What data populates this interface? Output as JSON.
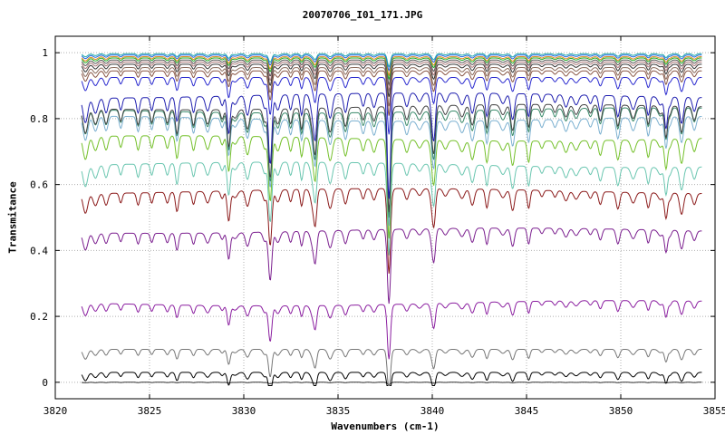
{
  "chart_data": {
    "type": "line",
    "title": "20070706_I01_171.JPG",
    "xlabel": "Wavenumbers (cm-1)",
    "ylabel": "Transmitance",
    "xlim": [
      3820,
      3855
    ],
    "ylim": [
      -0.05,
      1.05
    ],
    "x_data_range": [
      3821.4,
      3854.3
    ],
    "xticks": [
      3820,
      3825,
      3830,
      3835,
      3840,
      3845,
      3850,
      3855
    ],
    "yticks": [
      0,
      0.2,
      0.4,
      0.6,
      0.8,
      1
    ],
    "grid": true,
    "legend": "none",
    "series": [
      {
        "color": "#333333",
        "baseline": 0.0
      },
      {
        "color": "#000000",
        "baseline": 0.03
      },
      {
        "color": "#777777",
        "baseline": 0.1
      },
      {
        "color": "#8b1fa0",
        "baseline": 0.24
      },
      {
        "color": "#7b1f8f",
        "baseline": 0.46
      },
      {
        "color": "#8b1a1a",
        "baseline": 0.58
      },
      {
        "color": "#6ac6b0",
        "baseline": 0.66
      },
      {
        "color": "#74c02a",
        "baseline": 0.74
      },
      {
        "color": "#7bb0d0",
        "baseline": 0.8
      },
      {
        "color": "#3a8a6a",
        "baseline": 0.825
      },
      {
        "color": "#444444",
        "baseline": 0.835
      },
      {
        "color": "#1f1faf",
        "baseline": 0.87
      },
      {
        "color": "#2a2acf",
        "baseline": 0.925
      },
      {
        "color": "#885544",
        "baseline": 0.945
      },
      {
        "color": "#8a6a5a",
        "baseline": 0.955
      },
      {
        "color": "#333333",
        "baseline": 0.965
      },
      {
        "color": "#aa7777",
        "baseline": 0.972
      },
      {
        "color": "#555555",
        "baseline": 0.978
      },
      {
        "color": "#22aa22",
        "baseline": 0.984
      },
      {
        "color": "#dd8822",
        "baseline": 0.988
      },
      {
        "color": "#2266dd",
        "baseline": 0.993
      },
      {
        "color": "#22aaaa",
        "baseline": 0.997
      }
    ]
  }
}
